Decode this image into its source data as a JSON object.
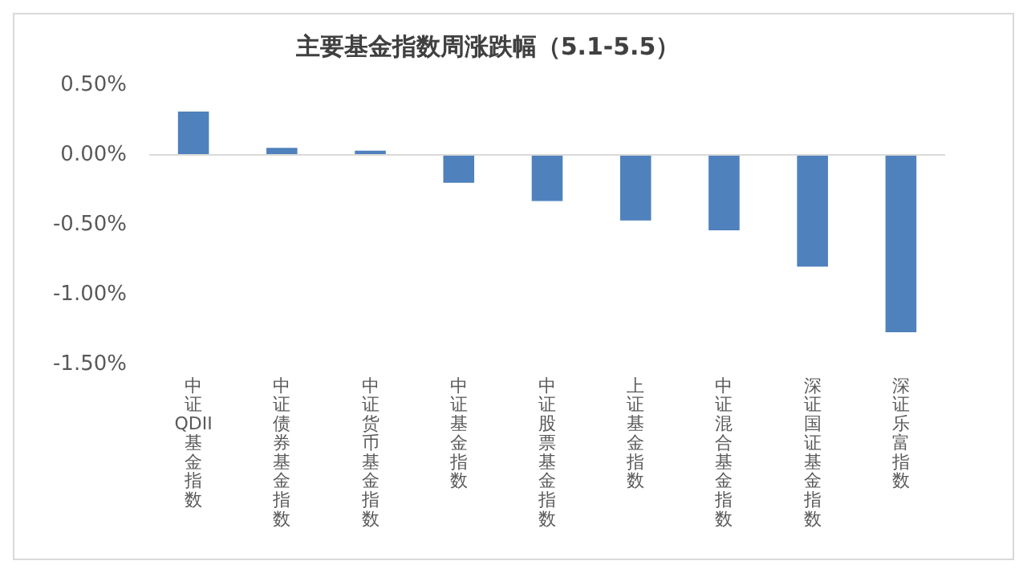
{
  "chart_data": {
    "type": "bar",
    "title": "主要基金指数周涨跌幅（5.1-5.5）",
    "categories": [
      "中证QDII基金指数",
      "中证债券基金指数",
      "中证货币基金指数",
      "中证基金指数",
      "中证股票基金指数",
      "上证基金指数",
      "中证混合基金指数",
      "深证国证基金指数",
      "深证乐富指数"
    ],
    "values": [
      0.31,
      0.05,
      0.03,
      -0.2,
      -0.33,
      -0.47,
      -0.54,
      -0.8,
      -1.27
    ],
    "color": "#4f81bd",
    "ylim": [
      -1.5,
      0.5
    ],
    "yticks": [
      {
        "value": 0.5,
        "label": "0.50%"
      },
      {
        "value": 0,
        "label": "0.00%"
      },
      {
        "value": -0.5,
        "label": "-0.50%"
      },
      {
        "value": -1,
        "label": "-1.00%"
      },
      {
        "value": -1.5,
        "label": "-1.50%"
      }
    ],
    "ref_lines": [
      {
        "axis": "y",
        "value": 0,
        "color": "#d9d9d9"
      }
    ],
    "grid": false,
    "legend": false
  }
}
